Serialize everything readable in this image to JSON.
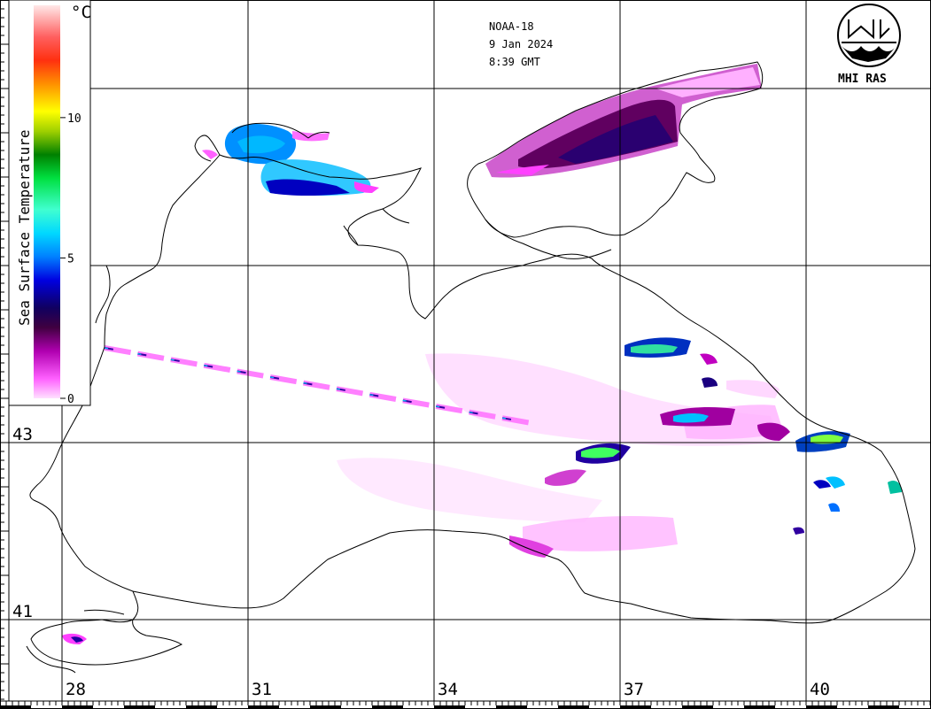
{
  "satellite": "NOAA-18",
  "date": "9 Jan 2024",
  "time": "8:39 GMT",
  "logo_text": "MHI RAS",
  "colorbar": {
    "title": "Sea Surface Temperature",
    "unit": "°C",
    "ticks": [
      "0",
      "5",
      "10"
    ],
    "tick_values": [
      0,
      5,
      10
    ],
    "min": 0,
    "max": 14,
    "colors": [
      "#ffd8ff",
      "#ff5cff",
      "#c000c0",
      "#600060",
      "#1a005a",
      "#0000c8",
      "#0070ff",
      "#00d0ff",
      "#40ffe0",
      "#00e060",
      "#008000",
      "#80c000",
      "#ffff00",
      "#ffa000",
      "#ff4000",
      "#ff3030",
      "#ffa0a0",
      "#ffe8e8"
    ]
  },
  "grid": {
    "lon_labels": [
      "28",
      "31",
      "34",
      "37",
      "40"
    ],
    "lon_values": [
      28,
      31,
      34,
      37,
      40
    ],
    "lat_labels": [
      "43",
      "41"
    ],
    "lat_values": [
      43,
      41
    ]
  }
}
